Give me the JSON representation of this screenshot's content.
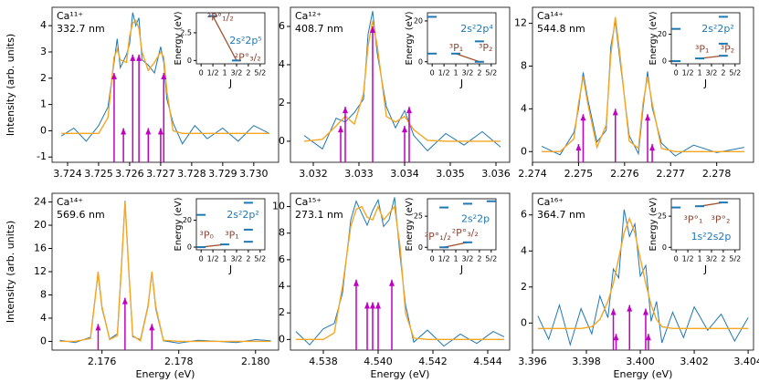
{
  "chart_data": [
    {
      "type": "line",
      "title": "Ca¹¹⁺",
      "subtitle": "332.7 nm",
      "ylabel": "Intensity (arb. units)",
      "xlim": [
        3.7235,
        3.7308
      ],
      "xticks": [
        3.724,
        3.725,
        3.726,
        3.727,
        3.728,
        3.729,
        {
          "value": 3.73,
          "label": "3.730"
        }
      ],
      "ylim": [
        -1.2,
        4.7
      ],
      "yticks": [
        -1,
        0,
        1,
        2,
        3,
        4
      ],
      "x": [
        3.7238,
        3.7242,
        3.7246,
        3.725,
        3.7253,
        3.7255,
        3.7256,
        3.7257,
        3.7259,
        3.726,
        3.7261,
        3.7262,
        3.7263,
        3.7264,
        3.7266,
        3.7268,
        3.727,
        3.7271,
        3.7272,
        3.7274,
        3.7277,
        3.7281,
        3.7285,
        3.729,
        3.7295,
        3.73,
        3.7305
      ],
      "series": [
        {
          "color": "#1f77b4",
          "values": [
            -0.2,
            0.1,
            -0.4,
            0.2,
            0.9,
            2.6,
            3.5,
            2.4,
            2.9,
            3.3,
            4.5,
            4.0,
            4.3,
            2.7,
            2.5,
            2.2,
            3.2,
            2.6,
            1.2,
            0.3,
            -0.5,
            0.2,
            -0.3,
            0.1,
            -0.4,
            0.2,
            -0.1
          ]
        },
        {
          "color": "#f5a623",
          "values": [
            -0.1,
            -0.1,
            -0.1,
            -0.1,
            0.5,
            2.8,
            3.1,
            2.7,
            2.6,
            3.6,
            4.1,
            4.2,
            3.9,
            3.0,
            2.3,
            2.6,
            3.0,
            2.8,
            1.5,
            0.0,
            -0.1,
            -0.1,
            -0.1,
            -0.1,
            -0.1,
            -0.1,
            -0.1
          ]
        }
      ],
      "sticks": {
        "color": "#c000c0",
        "x": [
          3.7255,
          3.7258,
          3.7261,
          3.7263,
          3.7266,
          3.727,
          3.7271
        ],
        "values": [
          2.2,
          0.1,
          2.9,
          2.9,
          0.1,
          0.1,
          2.2
        ]
      },
      "inset": {
        "xlim": [
          -0.2,
          2.7
        ],
        "xticks": [
          0,
          {
            "value": 0.5,
            "label": "1/2"
          },
          1,
          {
            "value": 1.5,
            "label": "3/2"
          },
          2,
          {
            "value": 2.5,
            "label": "5/2"
          }
        ],
        "ylim": [
          -0.3,
          4.3
        ],
        "yticks": [
          0,
          2.5
        ],
        "ylabel": "Energy (eV)",
        "xlabel": "J",
        "levels": {
          "x": [
            0.5,
            1.5
          ],
          "values": [
            4.0,
            0.0
          ]
        },
        "transition": {
          "x": [
            0.5,
            1.5
          ],
          "values": [
            4.0,
            0.0
          ]
        },
        "labels": [
          "2s²2p⁵",
          "²P°₁/₂",
          "²P°₃/₂"
        ]
      }
    },
    {
      "type": "line",
      "title": "Ca¹²⁺",
      "subtitle": "408.7 nm",
      "xlim": [
        3.0315,
        3.0363
      ],
      "xticks": [
        3.032,
        3.033,
        3.034,
        3.035,
        3.036
      ],
      "ylim": [
        -1.1,
        7.0
      ],
      "yticks": [
        0,
        2,
        4,
        6
      ],
      "x": [
        3.0318,
        3.0322,
        3.0325,
        3.0327,
        3.0329,
        3.0331,
        3.0332,
        3.0333,
        3.0334,
        3.0336,
        3.0338,
        3.034,
        3.0342,
        3.0345,
        3.0349,
        3.0353,
        3.0357,
        3.0361
      ],
      "series": [
        {
          "color": "#1f77b4",
          "values": [
            0.3,
            -0.4,
            1.2,
            1.0,
            1.5,
            2.2,
            5.6,
            6.8,
            4.6,
            1.8,
            0.7,
            1.6,
            0.3,
            -0.5,
            0.4,
            -0.2,
            0.5,
            -0.3
          ]
        },
        {
          "color": "#f5a623",
          "values": [
            0,
            0.1,
            0.8,
            1.3,
            0.9,
            2.5,
            5.0,
            6.3,
            5.0,
            1.3,
            1.0,
            1.3,
            0.6,
            0.05,
            0,
            0,
            0,
            0
          ]
        }
      ],
      "sticks": {
        "color": "#c000c0",
        "x": [
          3.0326,
          3.0327,
          3.0333,
          3.034,
          3.0341
        ],
        "values": [
          0.8,
          1.8,
          6.0,
          0.8,
          1.8
        ]
      },
      "inset": {
        "xlim": [
          -0.2,
          2.7
        ],
        "xticks": [
          0,
          {
            "value": 0.5,
            "label": "1/2"
          },
          1,
          {
            "value": 1.5,
            "label": "3/2"
          },
          2,
          {
            "value": 2.5,
            "label": "5/2"
          }
        ],
        "ylim": [
          -1,
          24
        ],
        "yticks": [
          0,
          20
        ],
        "ylabel": "Energy (eV)",
        "xlabel": "J",
        "levels": {
          "x": [
            0,
            0,
            1,
            2,
            2
          ],
          "values": [
            4,
            22,
            4,
            0,
            10
          ]
        },
        "transition": {
          "x": [
            1,
            2
          ],
          "values": [
            4,
            0
          ]
        },
        "labels": [
          "2s²2p⁴",
          "³P₁",
          "³P₂"
        ]
      }
    },
    {
      "type": "line",
      "title": "Ca¹⁴⁺",
      "subtitle": "544.8 nm",
      "xlim": [
        2.274,
        2.2788
      ],
      "xticks": [
        2.274,
        2.275,
        2.276,
        2.277,
        2.278
      ],
      "ylim": [
        -1,
        13.5
      ],
      "yticks": [
        0,
        4,
        8,
        12
      ],
      "x": [
        2.2742,
        2.2746,
        2.2749,
        2.275,
        2.2751,
        2.2752,
        2.2754,
        2.2756,
        2.2757,
        2.2758,
        2.2759,
        2.2761,
        2.2763,
        2.2764,
        2.2765,
        2.2766,
        2.2768,
        2.2771,
        2.2775,
        2.278,
        2.2786
      ],
      "series": [
        {
          "color": "#1f77b4",
          "values": [
            0.5,
            -0.3,
            1.8,
            4.0,
            7.4,
            4.9,
            0.9,
            2.0,
            9.8,
            12.2,
            8.5,
            1.5,
            -0.2,
            4.0,
            7.5,
            4.1,
            0.8,
            -0.4,
            0.6,
            -0.1,
            0.4
          ]
        },
        {
          "color": "#f5a623",
          "values": [
            0,
            0,
            1.2,
            4.5,
            7,
            4.5,
            0.4,
            2.5,
            9,
            12.6,
            9,
            1,
            0.3,
            4.5,
            7,
            4.5,
            0.3,
            0,
            0,
            0,
            0
          ]
        }
      ],
      "sticks": {
        "color": "#c000c0",
        "x": [
          2.275,
          2.2751,
          2.2758,
          2.2765,
          2.2766
        ],
        "values": [
          0.7,
          3.5,
          4.0,
          3.5,
          0.7
        ]
      },
      "inset": {
        "xlim": [
          -0.2,
          2.7
        ],
        "xticks": [
          0,
          {
            "value": 0.5,
            "label": "1/2"
          },
          1,
          {
            "value": 1.5,
            "label": "3/2"
          },
          2,
          {
            "value": 2.5,
            "label": "5/2"
          }
        ],
        "ylim": [
          -2,
          36
        ],
        "yticks": [
          0,
          20
        ],
        "ylabel": "Energy (eV)",
        "xlabel": "J",
        "levels": {
          "x": [
            0,
            0,
            1,
            2,
            2,
            2
          ],
          "values": [
            0,
            24,
            2,
            4,
            13,
            33
          ]
        },
        "transition": {
          "x": [
            1,
            2
          ],
          "values": [
            2,
            4
          ]
        },
        "labels": [
          "2s²2p²",
          "³P₁",
          "³P₂"
        ]
      }
    },
    {
      "type": "line",
      "title": "Ca¹⁴⁺",
      "subtitle": "569.6 nm",
      "ylabel": "Intensity (arb. units)",
      "xlabel": "Energy (eV)",
      "xlim": [
        2.1747,
        2.1806
      ],
      "xticks": [
        2.176,
        2.178,
        {
          "value": 2.18,
          "label": "2.180"
        }
      ],
      "ylim": [
        -1.5,
        25.5
      ],
      "yticks": [
        0,
        4,
        8,
        12,
        16,
        20,
        24
      ],
      "x": [
        2.1749,
        2.1753,
        2.1757,
        2.1758,
        2.1759,
        2.176,
        2.1762,
        2.1764,
        2.1765,
        2.1766,
        2.1767,
        2.1768,
        2.177,
        2.1772,
        2.1773,
        2.1774,
        2.1776,
        2.178,
        2.1785,
        2.179,
        2.1795,
        2.18,
        2.1804
      ],
      "series": [
        {
          "color": "#1f77b4",
          "values": [
            0.2,
            -0.2,
            0.7,
            6.3,
            11.6,
            5.7,
            0.4,
            1.3,
            12.5,
            24.2,
            11.7,
            0.8,
            0.3,
            6.2,
            11.8,
            5.6,
            0.1,
            -0.3,
            0.2,
            0.0,
            -0.2,
            0.3,
            0.1
          ]
        },
        {
          "color": "#f5a623",
          "values": [
            0,
            0,
            0.5,
            6,
            12,
            6,
            0.3,
            1,
            12,
            24,
            12,
            1,
            0.1,
            6,
            12,
            6,
            0.2,
            0,
            0,
            0,
            0,
            0,
            0
          ]
        }
      ],
      "sticks": {
        "color": "#c000c0",
        "x": [
          2.1759,
          2.1766,
          2.1773
        ],
        "values": [
          3.0,
          7.5,
          3.0
        ]
      },
      "inset": {
        "xlim": [
          -0.2,
          2.7
        ],
        "xticks": [
          0,
          {
            "value": 0.5,
            "label": "1/2"
          },
          1,
          {
            "value": 1.5,
            "label": "3/2"
          },
          2,
          {
            "value": 2.5,
            "label": "5/2"
          }
        ],
        "ylim": [
          -2,
          36
        ],
        "yticks": [
          0,
          20
        ],
        "ylabel": "Energy (eV)",
        "xlabel": "J",
        "levels": {
          "x": [
            0,
            0,
            1,
            2,
            2,
            2
          ],
          "values": [
            0,
            24,
            2,
            4,
            13,
            33
          ]
        },
        "transition": {
          "x": [
            0,
            1
          ],
          "values": [
            0,
            2
          ]
        },
        "labels": [
          "2s²2p²",
          "³P₀",
          "³P₁"
        ]
      }
    },
    {
      "type": "line",
      "title": "Ca¹⁵⁺",
      "subtitle": "273.1 nm",
      "xlabel": "Energy (eV)",
      "xlim": [
        4.5368,
        4.5448
      ],
      "xticks": [
        4.538,
        {
          "value": 4.54,
          "label": "4.540"
        },
        4.542,
        4.544
      ],
      "ylim": [
        -0.8,
        11
      ],
      "yticks": [
        0,
        2,
        4,
        6,
        8,
        10
      ],
      "x": [
        4.537,
        4.5375,
        4.538,
        4.5384,
        4.5387,
        4.539,
        4.5392,
        4.5394,
        4.5396,
        4.5398,
        4.54,
        4.5402,
        4.5404,
        4.5406,
        4.5408,
        4.541,
        4.5413,
        4.5418,
        4.5424,
        4.543,
        4.5436,
        4.5442,
        4.5446
      ],
      "series": [
        {
          "color": "#1f77b4",
          "values": [
            0.6,
            -0.4,
            0.8,
            1.2,
            3.5,
            9.0,
            10.4,
            9.5,
            8.6,
            9.7,
            10.5,
            8.5,
            9.0,
            10.7,
            6.3,
            2.6,
            -0.2,
            0.7,
            -0.5,
            0.4,
            -0.3,
            0.6,
            0.2
          ]
        },
        {
          "color": "#f5a623",
          "values": [
            0,
            0,
            0,
            0.5,
            4,
            8.5,
            9.8,
            10,
            9.2,
            9.0,
            10,
            9,
            9.5,
            10,
            7,
            2,
            0.1,
            0,
            0,
            0,
            0,
            0,
            0
          ]
        }
      ],
      "sticks": {
        "color": "#c000c0",
        "x": [
          4.5392,
          4.5396,
          4.5398,
          4.54,
          4.5405
        ],
        "values": [
          4.5,
          2.8,
          2.8,
          2.8,
          4.5
        ]
      },
      "inset": {
        "xlim": [
          -0.2,
          2.7
        ],
        "xticks": [
          0,
          {
            "value": 0.5,
            "label": "1/2"
          },
          1,
          {
            "value": 1.5,
            "label": "3/2"
          },
          2,
          {
            "value": 2.5,
            "label": "5/2"
          }
        ],
        "ylim": [
          -2,
          39
        ],
        "yticks": [
          0,
          25
        ],
        "ylabel": "Energy (eV)",
        "xlabel": "J",
        "levels": {
          "x": [
            0.5,
            0.5,
            1.5,
            1.5,
            2.5
          ],
          "values": [
            0,
            32,
            4,
            35,
            37
          ]
        },
        "transition": {
          "x": [
            0.5,
            1.5
          ],
          "values": [
            0,
            4
          ]
        },
        "labels": [
          "2s²2p",
          "²P°₁/₂",
          "²P°₃/₂"
        ]
      }
    },
    {
      "type": "line",
      "title": "Ca¹⁶⁺",
      "subtitle": "364.7 nm",
      "xlabel": "Energy (eV)",
      "xlim": [
        3.396,
        3.4042
      ],
      "xticks": [
        3.396,
        3.398,
        {
          "value": 3.4,
          "label": "3.400"
        },
        3.402,
        3.404
      ],
      "ylim": [
        -1.5,
        7.2
      ],
      "yticks": [
        0,
        2,
        4,
        6
      ],
      "x": [
        3.3962,
        3.3966,
        3.397,
        3.3974,
        3.3978,
        3.3982,
        3.3985,
        3.3988,
        3.399,
        3.3992,
        3.3994,
        3.3996,
        3.3998,
        3.4,
        3.4002,
        3.4004,
        3.4006,
        3.4008,
        3.4012,
        3.4016,
        3.402,
        3.4025,
        3.403,
        3.4035,
        3.404
      ],
      "series": [
        {
          "color": "#1f77b4",
          "values": [
            0.4,
            -0.9,
            1.0,
            -1.2,
            0.8,
            -0.6,
            1.5,
            0.3,
            3.0,
            2.5,
            6.3,
            4.8,
            5.5,
            2.6,
            3.2,
            0.1,
            1.2,
            -1.1,
            0.6,
            -0.8,
            0.9,
            -0.4,
            0.5,
            -1.0,
            0.3
          ]
        },
        {
          "color": "#f5a623",
          "values": [
            -0.3,
            -0.3,
            -0.3,
            -0.3,
            -0.3,
            -0.2,
            0.2,
            1.2,
            2.2,
            3.6,
            5.0,
            5.8,
            5.0,
            3.6,
            2.2,
            1.0,
            0.2,
            -0.2,
            -0.3,
            -0.3,
            -0.3,
            -0.3,
            -0.3,
            -0.3,
            -0.3
          ]
        }
      ],
      "sticks": {
        "color": "#c000c0",
        "x": [
          3.399,
          3.3991,
          3.3996,
          3.4002,
          3.4003
        ],
        "values": [
          0.8,
          -0.6,
          1.0,
          0.8,
          -0.6
        ]
      },
      "inset": {
        "xlim": [
          -0.2,
          2.7
        ],
        "xticks": [
          0,
          {
            "value": 0.5,
            "label": "1/2"
          },
          1,
          {
            "value": 1.5,
            "label": "3/2"
          },
          2,
          {
            "value": 2.5,
            "label": "5/2"
          }
        ],
        "ylim": [
          -2,
          39
        ],
        "yticks": [
          0,
          25
        ],
        "ylabel": "Energy (eV)",
        "xlabel": "J",
        "levels": {
          "x": [
            0,
            1,
            2
          ],
          "values": [
            32,
            33,
            36
          ]
        },
        "transition": {
          "x": [
            1,
            2
          ],
          "values": [
            33,
            36
          ]
        },
        "labels": [
          "³P°₁",
          "³P°₂",
          "1s²2s2p"
        ]
      }
    }
  ]
}
